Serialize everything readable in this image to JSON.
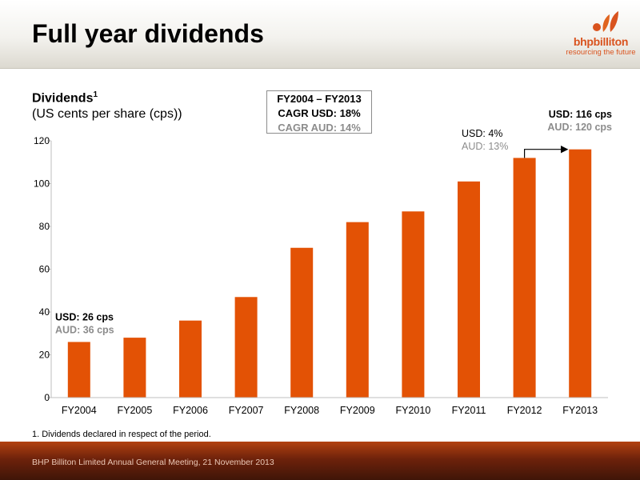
{
  "slide": {
    "title": "Full year dividends",
    "footnote": "1.  Dividends declared in respect of the period.",
    "footer": "BHP Billiton Limited Annual General Meeting, 21 November 2013"
  },
  "logo": {
    "name": "bhpbilliton",
    "tagline": "resourcing the future"
  },
  "subtitle": {
    "main": "Dividends",
    "sup": "1",
    "unit": "(US cents per share (cps))"
  },
  "cagr_box": {
    "period": "FY2004 – FY2013",
    "usd": "CAGR USD:  18%",
    "aud": "CAGR AUD:  14%"
  },
  "colors": {
    "bar": "#e35205",
    "aud_text": "#8c8c8c",
    "axis": "#bfbfbf"
  },
  "chart_data": {
    "type": "bar",
    "categories": [
      "FY2004",
      "FY2005",
      "FY2006",
      "FY2007",
      "FY2008",
      "FY2009",
      "FY2010",
      "FY2011",
      "FY2012",
      "FY2013"
    ],
    "values": [
      26,
      28,
      36,
      47,
      70,
      82,
      87,
      101,
      112,
      116
    ],
    "ylim": [
      0,
      120
    ],
    "yticks": [
      0,
      20,
      40,
      60,
      80,
      100,
      120
    ],
    "grid": false,
    "annotations": {
      "first_bar": {
        "usd": "USD: 26 cps",
        "aud": "AUD: 36 cps"
      },
      "last_bar": {
        "usd": "USD: 116 cps",
        "aud": "AUD: 120 cps"
      },
      "growth": {
        "usd": "USD:   4%",
        "aud": "AUD: 13%"
      }
    }
  }
}
